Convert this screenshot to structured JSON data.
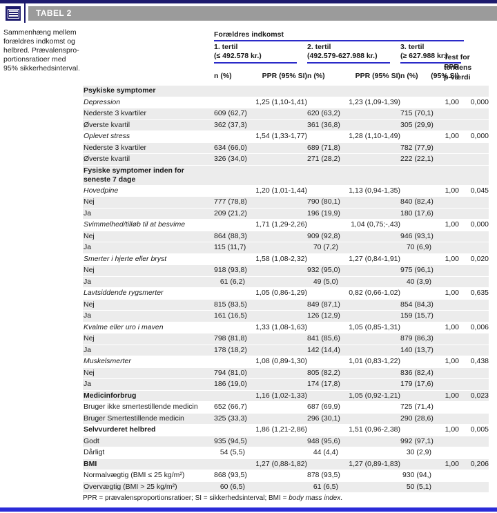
{
  "page": {
    "tabel_label": "TABEL 2",
    "caption_lines": [
      "Sammenhæng mellem",
      "forældres indkomst og",
      "helbred. Prævalenspro-",
      "portionsratioer med",
      "95% sikkerhedsinterval."
    ]
  },
  "colors": {
    "navy": "#1e1b6e",
    "title_bar_gray": "#9b9b9b",
    "rule_blue": "#2a2ac8",
    "bottom_bar_blue": "#2b2bd8",
    "row_stripe": "#ececec"
  },
  "icons": {
    "header_icon": "table-icon"
  },
  "table": {
    "group_header": "Forældres indkomst",
    "tertiles": [
      {
        "line1": "1. tertil",
        "line2": "(≤ 492.578 kr.)"
      },
      {
        "line1": "2. tertil",
        "line2": "(492.579-627.988 kr.)"
      },
      {
        "line1": "3. tertil",
        "line2": "(≥ 627.988 kr.)"
      }
    ],
    "col_n": "n (%)",
    "col_ppr": "PPR (95% SI)",
    "col_ppr3_line1": "PPR",
    "col_ppr3_line2": "(95% SI)",
    "test_lines": [
      "Test for",
      "tendens",
      "p-værdi"
    ],
    "rows": [
      {
        "label": "Psykiske symptomer",
        "style": "bold",
        "shaded": true
      },
      {
        "label": "Depression",
        "style": "italic",
        "shaded": false,
        "ppr1": "1,25 (1,10-1,41)",
        "ppr2": "1,23 (1,09-1,39)",
        "ppr3": "1,00",
        "p": "0,000"
      },
      {
        "label": "Nederste 3 kvartiler",
        "shaded": true,
        "n1": "609 (62,7)",
        "n2": "620 (63,2)",
        "n3": "715 (70,1)"
      },
      {
        "label": "Øverste kvartil",
        "shaded": true,
        "n1": "362 (37,3)",
        "n2": "361 (36,8)",
        "n3": "305 (29,9)"
      },
      {
        "label": "Oplevet stress",
        "style": "italic",
        "shaded": false,
        "ppr1": "1,54 (1,33-1,77)",
        "ppr2": "1,28 (1,10-1,49)",
        "ppr3": "1,00",
        "p": "0,000"
      },
      {
        "label": "Nederste 3 kvartiler",
        "shaded": true,
        "n1": "634 (66,0)",
        "n2": "689 (71,8)",
        "n3": "782 (77,9)"
      },
      {
        "label": "Øverste kvartil",
        "shaded": true,
        "n1": "326 (34,0)",
        "n2": "271 (28,2)",
        "n3": "222 (22,1)"
      },
      {
        "label": "Fysiske symptomer inden for\nseneste 7 dage",
        "style": "bold",
        "shaded": true,
        "tall": true
      },
      {
        "label": "Hovedpine",
        "style": "italic",
        "shaded": false,
        "ppr1": "1,20 (1,01-1,44)",
        "ppr2": "1,13 (0,94-1,35)",
        "ppr3": "1,00",
        "p": "0,045"
      },
      {
        "label": "Nej",
        "shaded": true,
        "n1": "777 (78,8)",
        "n2": "790 (80,1)",
        "n3": "840 (82,4)"
      },
      {
        "label": "Ja",
        "shaded": true,
        "n1": "209 (21,2)",
        "n2": "196 (19,9)",
        "n3": "180 (17,6)"
      },
      {
        "label": "Svimmelhed/tilløb til at besvime",
        "style": "italic",
        "shaded": false,
        "ppr1": "1,71 (1,29-2,26)",
        "ppr2": "1,04 (0,75;-,43)",
        "ppr3": "1,00",
        "p": "0,000"
      },
      {
        "label": "Nej",
        "shaded": true,
        "n1": "864 (88,3)",
        "n2": "909 (92,8)",
        "n3": "946 (93,1)"
      },
      {
        "label": "Ja",
        "shaded": true,
        "n1": "115 (11,7)",
        "n2": "70 (7,2)",
        "n3": "70 (6,9)"
      },
      {
        "label": "Smerter i hjerte eller bryst",
        "style": "italic",
        "shaded": false,
        "ppr1": "1,58 (1,08-2,32)",
        "ppr2": "1,27 (0,84-1,91)",
        "ppr3": "1,00",
        "p": "0,020"
      },
      {
        "label": "Nej",
        "shaded": true,
        "n1": "918 (93,8)",
        "n2": "932 (95,0)",
        "n3": "975 (96,1)"
      },
      {
        "label": "Ja",
        "shaded": true,
        "n1": "61 (6,2)",
        "n2": "49 (5,0)",
        "n3": "40 (3,9)"
      },
      {
        "label": "Lavtsiddende rygsmerter",
        "style": "italic",
        "shaded": false,
        "ppr1": "1,05 (0,86-1,29)",
        "ppr2": "0,82 (0,66-1,02)",
        "ppr3": "1,00",
        "p": "0,635"
      },
      {
        "label": "Nej",
        "shaded": true,
        "n1": "815 (83,5)",
        "n2": "849 (87,1)",
        "n3": "854 (84,3)"
      },
      {
        "label": "Ja",
        "shaded": true,
        "n1": "161 (16,5)",
        "n2": "126 (12,9)",
        "n3": "159 (15,7)"
      },
      {
        "label": "Kvalme eller uro i maven",
        "style": "italic",
        "shaded": false,
        "ppr1": "1,33 (1,08-1,63)",
        "ppr2": "1,05 (0,85-1,31)",
        "ppr3": "1,00",
        "p": "0,006"
      },
      {
        "label": "Nej",
        "shaded": true,
        "n1": "798 (81,8)",
        "n2": "841 (85,6)",
        "n3": "879 (86,3)"
      },
      {
        "label": "Ja",
        "shaded": true,
        "n1": "178 (18,2)",
        "n2": "142 (14,4)",
        "n3": "140 (13,7)"
      },
      {
        "label": "Muskelsmerter",
        "style": "italic",
        "shaded": false,
        "ppr1": "1,08 (0,89-1,30)",
        "ppr2": "1,01 (0,83-1,22)",
        "ppr3": "1,00",
        "p": "0,438"
      },
      {
        "label": "Nej",
        "shaded": true,
        "n1": "794 (81,0)",
        "n2": "805 (82,2)",
        "n3": "836 (82,4)"
      },
      {
        "label": "Ja",
        "shaded": true,
        "n1": "186 (19,0)",
        "n2": "174 (17,8)",
        "n3": "179 (17,6)"
      },
      {
        "label": "Medicinforbrug",
        "style": "bold",
        "shaded": true,
        "ppr1": "1,16 (1,02-1,33)",
        "ppr2": "1,05 (0,92-1,21)",
        "ppr3": "1,00",
        "p": "0,023"
      },
      {
        "label": "Bruger ikke smertestillende medicin",
        "shaded": false,
        "n1": "652 (66,7)",
        "n2": "687 (69,9)",
        "n3": "725 (71,4)"
      },
      {
        "label": "Bruger Smertestillende medicin",
        "shaded": true,
        "n1": "325 (33,3)",
        "n2": "296 (30,1)",
        "n3": "290 (28,6)"
      },
      {
        "label": "Selvvurderet helbred",
        "style": "bold",
        "shaded": false,
        "ppr1": "1,86 (1,21-2,86)",
        "ppr2": "1,51 (0,96-2,38)",
        "ppr3": "1,00",
        "p": "0,005"
      },
      {
        "label": "Godt",
        "shaded": true,
        "n1": "935 (94,5)",
        "n2": "948 (95,6)",
        "n3": "992 (97,1)"
      },
      {
        "label": "Dårligt",
        "shaded": false,
        "n1": "54 (5,5)",
        "n2": "44 (4,4)",
        "n3": "30 (2,9)"
      },
      {
        "label": "BMI",
        "style": "bold",
        "shaded": true,
        "ppr1": "1,27 (0,88-1,82)",
        "ppr2": "1,27 (0,89-1,83)",
        "ppr3": "1,00",
        "p": "0,206"
      },
      {
        "label": "Normalvægtig (BMI ≤ 25 kg/m²)",
        "shaded": false,
        "n1": "868 (93,5)",
        "n2": "878 (93,5)",
        "n3": "930 (94,)"
      },
      {
        "label": "Overvægtig (BMI > 25 kg/m²)",
        "shaded": true,
        "n1": "60 (6,5)",
        "n2": "61 (6,5)",
        "n3": "50 (5,1)"
      }
    ]
  },
  "footer": {
    "regular": "PPR = prævalensproportionsratioer; SI = sikkerhedsinterval; BMI = ",
    "italic": "body mass index",
    "end": "."
  }
}
